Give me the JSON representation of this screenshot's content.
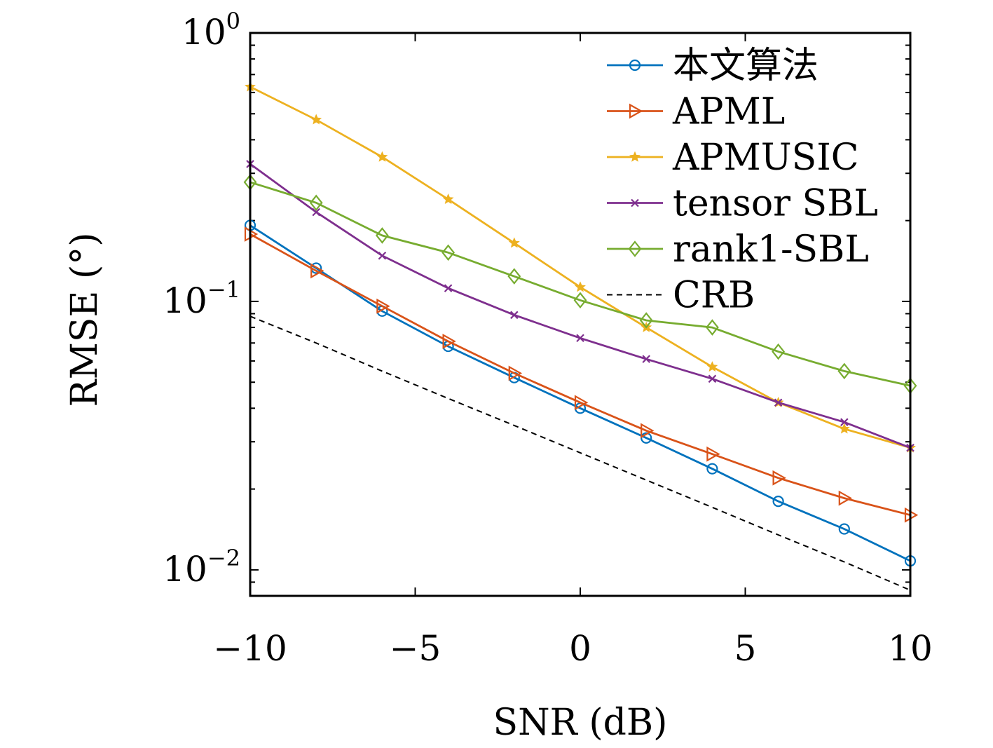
{
  "chart_data": {
    "type": "line",
    "xlabel": "SNR (dB)",
    "ylabel": "RMSE (°)",
    "xlim": [
      -10,
      10
    ],
    "ylim": [
      0.008,
      1
    ],
    "yscale": "log",
    "grid": false,
    "legend_position": "top-right",
    "x_ticks": [
      {
        "value": -10,
        "label": "−10"
      },
      {
        "value": -5,
        "label": "−5"
      },
      {
        "value": 0,
        "label": "0"
      },
      {
        "value": 5,
        "label": "5"
      },
      {
        "value": 10,
        "label": "10"
      }
    ],
    "y_ticks": [
      {
        "value": 1,
        "base": "10",
        "exp": "0"
      },
      {
        "value": 0.1,
        "base": "10",
        "exp": "−1"
      },
      {
        "value": 0.01,
        "base": "10",
        "exp": "−2"
      }
    ],
    "x": [
      -10,
      -8,
      -6,
      -4,
      -2,
      0,
      2,
      4,
      6,
      8,
      10
    ],
    "series": [
      {
        "name": "本文算法",
        "color": "#0072BD",
        "marker": "circle",
        "dash": "",
        "values": [
          0.192,
          0.133,
          0.092,
          0.068,
          0.052,
          0.04,
          0.031,
          0.0238,
          0.018,
          0.0142,
          0.0108
        ]
      },
      {
        "name": "APML",
        "color": "#D95319",
        "marker": "triangle-right",
        "dash": "",
        "values": [
          0.178,
          0.13,
          0.096,
          0.071,
          0.054,
          0.042,
          0.033,
          0.027,
          0.022,
          0.0185,
          0.016
        ]
      },
      {
        "name": "APMUSIC",
        "color": "#EDB120",
        "marker": "star",
        "dash": "",
        "values": [
          0.63,
          0.475,
          0.345,
          0.24,
          0.165,
          0.113,
          0.08,
          0.057,
          0.042,
          0.0335,
          0.0285
        ]
      },
      {
        "name": "tensor SBL",
        "color": "#7E2F8E",
        "marker": "x",
        "dash": "",
        "values": [
          0.325,
          0.215,
          0.148,
          0.112,
          0.089,
          0.073,
          0.061,
          0.0515,
          0.042,
          0.0355,
          0.0285
        ]
      },
      {
        "name": "rank1-SBL",
        "color": "#77AC30",
        "marker": "diamond",
        "dash": "",
        "values": [
          0.278,
          0.233,
          0.176,
          0.152,
          0.124,
          0.101,
          0.085,
          0.08,
          0.065,
          0.055,
          0.0485
        ]
      },
      {
        "name": "CRB",
        "color": "#000000",
        "marker": "none",
        "dash": "8,6",
        "values": [
          0.088,
          0.07,
          0.055,
          0.0435,
          0.0345,
          0.0273,
          0.0216,
          0.0171,
          0.0135,
          0.0107,
          0.0084
        ]
      }
    ]
  }
}
